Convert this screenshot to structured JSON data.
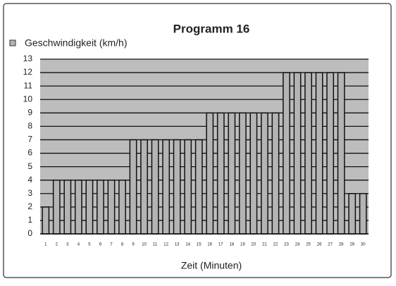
{
  "chart_data": {
    "type": "bar",
    "title": "Programm 16",
    "x_label": "Zeit (Minuten)",
    "categories": [
      1,
      2,
      3,
      4,
      5,
      6,
      7,
      8,
      9,
      10,
      11,
      12,
      13,
      14,
      15,
      16,
      17,
      18,
      19,
      20,
      21,
      22,
      23,
      24,
      25,
      26,
      27,
      28,
      29,
      30
    ],
    "series": [
      {
        "name": "Geschwindigkeit (km/h)",
        "color": "#b4b4b4",
        "values": [
          2,
          4,
          4,
          4,
          4,
          4,
          4,
          4,
          7,
          7,
          7,
          7,
          7,
          7,
          7,
          9,
          9,
          9,
          9,
          9,
          9,
          9,
          12,
          12,
          12,
          12,
          12,
          12,
          3,
          3
        ]
      }
    ],
    "ylim": [
      0,
      13
    ],
    "yticks": [
      0,
      1,
      2,
      3,
      4,
      5,
      6,
      7,
      8,
      9,
      10,
      11,
      12,
      13
    ],
    "grid": true,
    "legend": "top-left"
  }
}
